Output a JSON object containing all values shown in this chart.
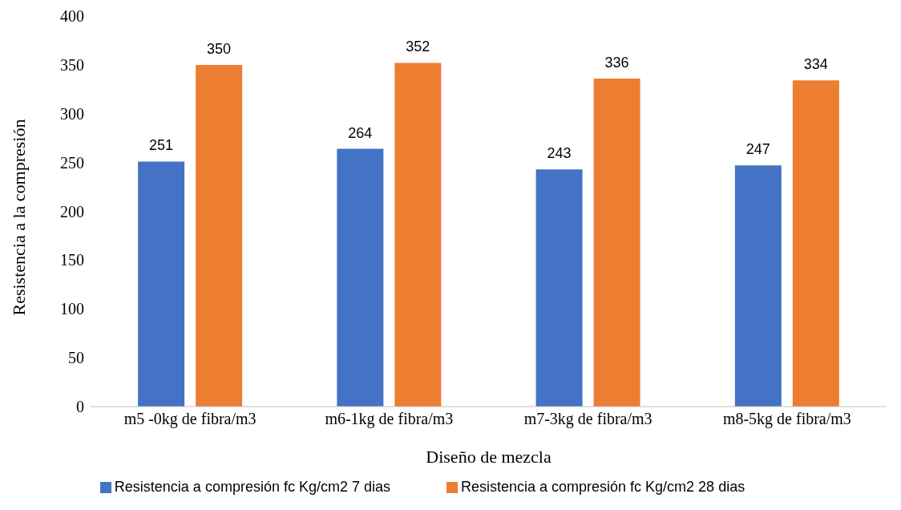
{
  "chart_data": {
    "type": "bar",
    "xlabel": "Diseño de mezcla",
    "ylabel": "Resistencia a la compresión",
    "categories": [
      "m5 -0kg de fibra/m3",
      "m6-1kg de fibra/m3",
      "m7-3kg de fibra/m3",
      "m8-5kg de fibra/m3"
    ],
    "series": [
      {
        "name": "Resistencia a compresión fc Kg/cm2 7 dias",
        "color": "#4472c4",
        "values": [
          251,
          264,
          243,
          247
        ]
      },
      {
        "name": "Resistencia a compresión fc Kg/cm2 28 dias",
        "color": "#ed7d31",
        "values": [
          350,
          352,
          336,
          334
        ]
      }
    ],
    "ylim": [
      0,
      400
    ],
    "yticks": [
      0,
      50,
      100,
      150,
      200,
      250,
      300,
      350,
      400
    ],
    "grid": false,
    "legend": "bottom",
    "data_labels": true
  }
}
